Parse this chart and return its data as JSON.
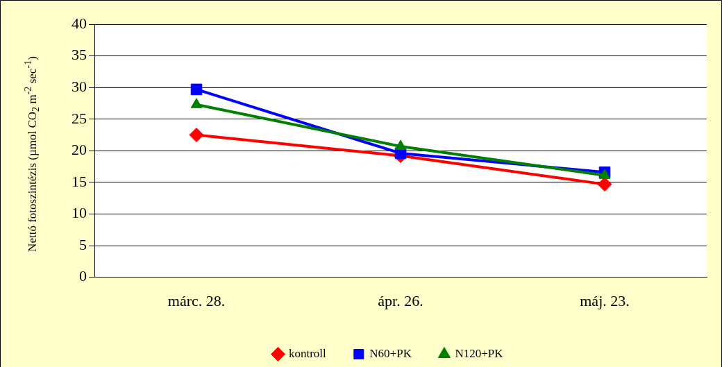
{
  "chart_data": {
    "type": "line",
    "ylabel": "Nettó fotoszintézis (µmol CO$_{2}$ m$^{-2}$ sec$^{-1}$)",
    "categories": [
      "márc. 28.",
      "ápr. 26.",
      "máj. 23."
    ],
    "series": [
      {
        "name": "kontroll",
        "color": "#ff0000",
        "marker": "diamond",
        "values": [
          22.5,
          19.2,
          14.7
        ]
      },
      {
        "name": "N60+PK",
        "color": "#0000ff",
        "marker": "square",
        "values": [
          29.7,
          19.6,
          16.6
        ]
      },
      {
        "name": "N120+PK",
        "color": "#008000",
        "marker": "triangle",
        "values": [
          27.3,
          20.7,
          16.1
        ]
      }
    ],
    "ylim": [
      0,
      40
    ],
    "yticks": [
      0,
      5,
      10,
      15,
      20,
      25,
      30,
      35,
      40
    ],
    "grid": "y",
    "legend": "bottom",
    "line_style": "solid"
  }
}
